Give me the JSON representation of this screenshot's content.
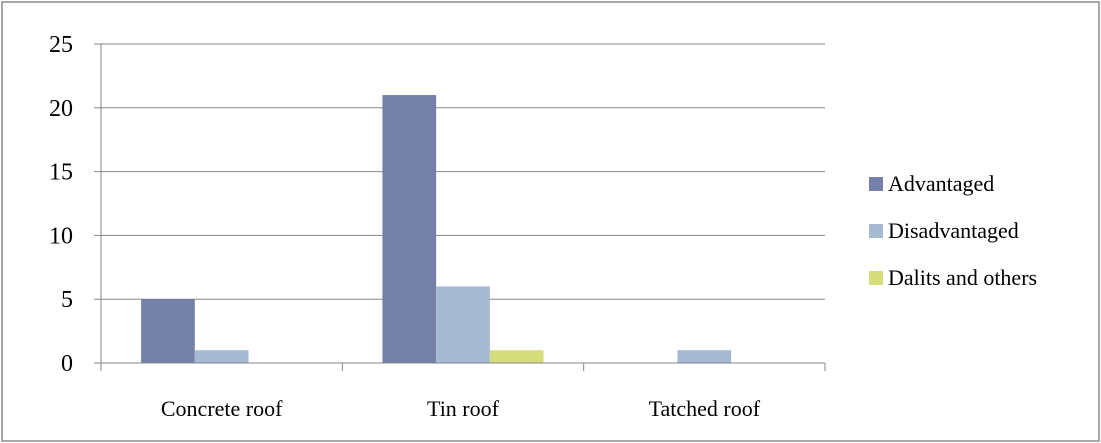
{
  "chart_data": {
    "type": "bar",
    "title": "",
    "xlabel": "",
    "ylabel": "",
    "categories": [
      "Concrete roof",
      "Tin roof",
      "Tatched roof"
    ],
    "series": [
      {
        "name": "Advantaged",
        "color": "#7480a8",
        "values": [
          5,
          21,
          0
        ]
      },
      {
        "name": "Disadvantaged",
        "color": "#a5bad2",
        "values": [
          1,
          6,
          1
        ]
      },
      {
        "name": "Dalits and others",
        "color": "#d5dc7c",
        "values": [
          0,
          1,
          0
        ]
      }
    ],
    "ylim": [
      0,
      25
    ],
    "yticks": [
      0,
      5,
      10,
      15,
      20,
      25
    ],
    "grid": true,
    "legend_position": "right"
  }
}
